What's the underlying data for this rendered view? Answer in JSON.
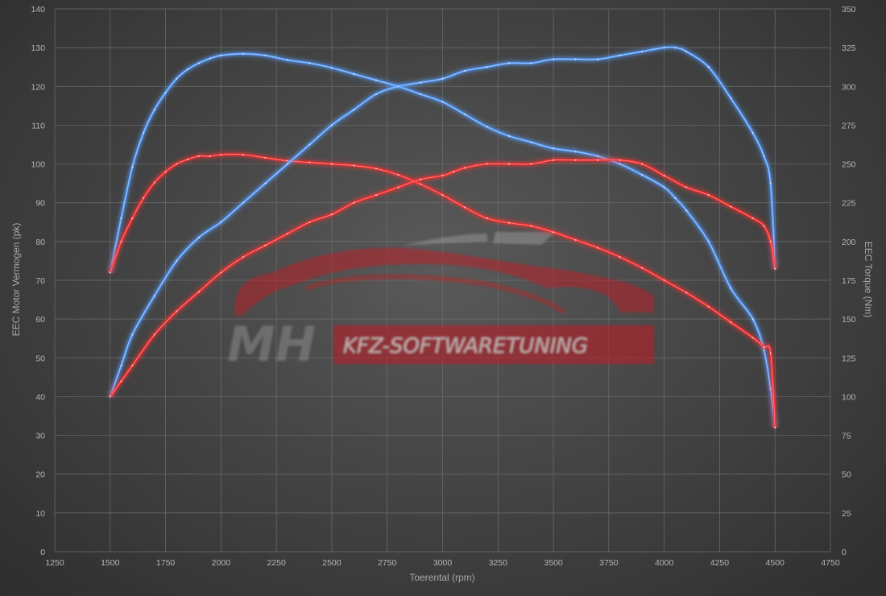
{
  "chart_data": {
    "type": "line",
    "xlabel": "Toerental (rpm)",
    "ylabel_left": "EEC Motor Vermogen (pk)",
    "ylabel_right": "EEC Torque (Nm)",
    "xlim": [
      1250,
      4750
    ],
    "xticks": [
      1250,
      1500,
      1750,
      2000,
      2250,
      2500,
      2750,
      3000,
      3250,
      3500,
      3750,
      4000,
      4250,
      4500,
      4750
    ],
    "ylim_left": [
      0,
      140
    ],
    "yticks_left": [
      0,
      10,
      20,
      30,
      40,
      50,
      60,
      70,
      80,
      90,
      100,
      110,
      120,
      130,
      140
    ],
    "ylim_right": [
      0,
      350
    ],
    "yticks_right": [
      0,
      25,
      50,
      75,
      100,
      125,
      150,
      175,
      200,
      225,
      250,
      275,
      300,
      325,
      350
    ],
    "grid": true,
    "colors": {
      "tuned": "#5aa0ff",
      "stock": "#ff3030"
    },
    "series": [
      {
        "axis": "right",
        "color": "tuned",
        "x": [
          1500,
          1550,
          1600,
          1650,
          1700,
          1750,
          1800,
          1850,
          1900,
          1950,
          2000,
          2100,
          2200,
          2300,
          2400,
          2500,
          2600,
          2700,
          2800,
          2900,
          3000,
          3100,
          3200,
          3300,
          3400,
          3500,
          3600,
          3700,
          3800,
          3900,
          4000,
          4050,
          4100,
          4200,
          4300,
          4400,
          4450,
          4480,
          4500
        ],
        "y": [
          180,
          215,
          248,
          270,
          285,
          296,
          305,
          311,
          315,
          318,
          320,
          321,
          320,
          317,
          315,
          312,
          308,
          304,
          300,
          295,
          290,
          282,
          274,
          268,
          264,
          260,
          258,
          255,
          250,
          243,
          235,
          228,
          220,
          200,
          170,
          150,
          130,
          105,
          80
        ]
      },
      {
        "axis": "right",
        "color": "stock",
        "x": [
          1500,
          1550,
          1600,
          1650,
          1700,
          1750,
          1800,
          1850,
          1900,
          1950,
          2000,
          2100,
          2200,
          2300,
          2400,
          2500,
          2600,
          2700,
          2800,
          2900,
          3000,
          3100,
          3200,
          3300,
          3400,
          3500,
          3600,
          3700,
          3800,
          3900,
          4000,
          4100,
          4200,
          4300,
          4400,
          4450,
          4480,
          4500
        ],
        "y": [
          180,
          200,
          215,
          228,
          238,
          245,
          250,
          253,
          255,
          255,
          256,
          256,
          254,
          252,
          251,
          250,
          249,
          247,
          243,
          237,
          230,
          222,
          215,
          212,
          210,
          206,
          201,
          196,
          190,
          183,
          175,
          167,
          158,
          148,
          138,
          132,
          128,
          80
        ]
      },
      {
        "axis": "left",
        "color": "tuned",
        "x": [
          1500,
          1550,
          1600,
          1700,
          1800,
          1900,
          2000,
          2100,
          2200,
          2300,
          2400,
          2500,
          2600,
          2700,
          2800,
          2900,
          3000,
          3100,
          3200,
          3300,
          3400,
          3500,
          3600,
          3700,
          3800,
          3900,
          4000,
          4050,
          4100,
          4200,
          4300,
          4400,
          4450,
          4480,
          4500
        ],
        "y": [
          40,
          48,
          56,
          66,
          75,
          81,
          85,
          90,
          95,
          100,
          105,
          110,
          114,
          118,
          120,
          121,
          122,
          124,
          125,
          126,
          126,
          127,
          127,
          127,
          128,
          129,
          130,
          130,
          129,
          125,
          117,
          108,
          102,
          95,
          73
        ]
      },
      {
        "axis": "left",
        "color": "stock",
        "x": [
          1500,
          1550,
          1600,
          1700,
          1800,
          1900,
          2000,
          2100,
          2200,
          2300,
          2400,
          2500,
          2600,
          2700,
          2800,
          2900,
          3000,
          3050,
          3100,
          3200,
          3300,
          3400,
          3500,
          3600,
          3700,
          3800,
          3900,
          4000,
          4100,
          4200,
          4300,
          4400,
          4450,
          4480,
          4500
        ],
        "y": [
          40,
          44,
          48,
          56,
          62,
          67,
          72,
          76,
          79,
          82,
          85,
          87,
          90,
          92,
          94,
          96,
          97,
          98,
          99,
          100,
          100,
          100,
          101,
          101,
          101,
          101,
          100,
          97,
          94,
          92,
          89,
          86,
          84,
          80,
          73
        ]
      }
    ]
  },
  "watermark": {
    "logo_mh": "MH",
    "logo_text": "KFZ-SOFTWARETUNING"
  }
}
